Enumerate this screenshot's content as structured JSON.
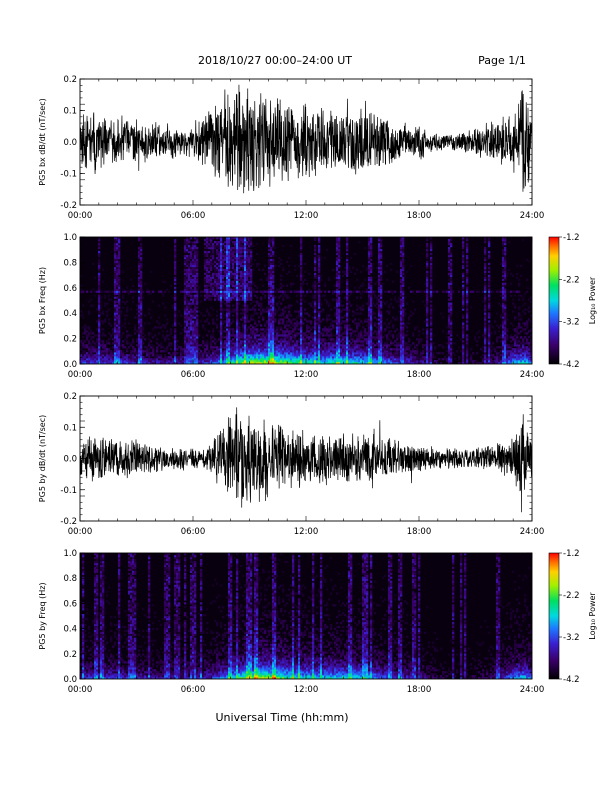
{
  "header": {
    "title": "2018/10/27   00:00–24:00 UT",
    "page": "Page 1/1"
  },
  "xaxis": {
    "label": "Universal Time (hh:mm)",
    "tick_labels": [
      "00:00",
      "06:00",
      "12:00",
      "18:00",
      "24:00"
    ]
  },
  "colorbar": {
    "label": "Log₁₀ Power",
    "tick_labels": [
      "-1.2",
      "-2.2",
      "-3.2",
      "-4.2"
    ],
    "range": [
      -4.2,
      -1.2
    ]
  },
  "chart_data": [
    {
      "type": "line",
      "ylabel": "PG5 bx dB/dt (nT/sec)",
      "xlim": [
        0,
        24
      ],
      "ylim": [
        -0.2,
        0.2
      ],
      "yticks": [
        "0.2",
        "0.1",
        "0.0",
        "-0.1",
        "-0.2"
      ],
      "x_unit": "hours UT",
      "x": [
        0,
        1,
        2,
        3,
        4,
        5,
        6,
        6.5,
        7,
        7.5,
        8,
        8.5,
        9,
        10,
        11,
        12,
        13,
        14,
        15,
        16,
        17,
        18,
        19,
        20,
        21,
        22,
        23,
        23.5,
        24
      ],
      "envelope": [
        0.12,
        0.1,
        0.09,
        0.08,
        0.07,
        0.06,
        0.05,
        0.08,
        0.13,
        0.17,
        0.2,
        0.22,
        0.2,
        0.16,
        0.14,
        0.13,
        0.12,
        0.11,
        0.12,
        0.1,
        0.07,
        0.06,
        0.03,
        0.03,
        0.05,
        0.07,
        0.1,
        0.2,
        0.1
      ]
    },
    {
      "type": "heatmap",
      "ylabel": "PG5 bx Freq (Hz)",
      "xlim": [
        0,
        24
      ],
      "ylim": [
        0,
        1.0
      ],
      "yticks": [
        "1.0",
        "0.8",
        "0.6",
        "0.4",
        "0.2",
        "0.0"
      ],
      "value_range": [
        -4.2,
        -1.2
      ]
    },
    {
      "type": "line",
      "ylabel": "PG5 by dB/dt (nT/sec)",
      "xlim": [
        0,
        24
      ],
      "ylim": [
        -0.2,
        0.2
      ],
      "yticks": [
        "0.2",
        "0.1",
        "0.0",
        "-0.1",
        "-0.2"
      ],
      "x_unit": "hours UT",
      "x": [
        0,
        1,
        2,
        3,
        4,
        5,
        6,
        6.5,
        7,
        7.5,
        8,
        8.5,
        9,
        10,
        11,
        12,
        13,
        14,
        15,
        16,
        17,
        18,
        19,
        20,
        21,
        22,
        23,
        23.5,
        24
      ],
      "envelope": [
        0.09,
        0.08,
        0.07,
        0.06,
        0.05,
        0.04,
        0.04,
        0.04,
        0.06,
        0.12,
        0.16,
        0.22,
        0.18,
        0.13,
        0.11,
        0.1,
        0.09,
        0.08,
        0.09,
        0.08,
        0.06,
        0.05,
        0.04,
        0.04,
        0.04,
        0.05,
        0.07,
        0.16,
        0.07
      ]
    },
    {
      "type": "heatmap",
      "ylabel": "PG5 by Freq (Hz)",
      "xlim": [
        0,
        24
      ],
      "ylim": [
        0,
        1.0
      ],
      "yticks": [
        "1.0",
        "0.8",
        "0.6",
        "0.4",
        "0.2",
        "0.0"
      ],
      "value_range": [
        -4.2,
        -1.2
      ]
    }
  ]
}
